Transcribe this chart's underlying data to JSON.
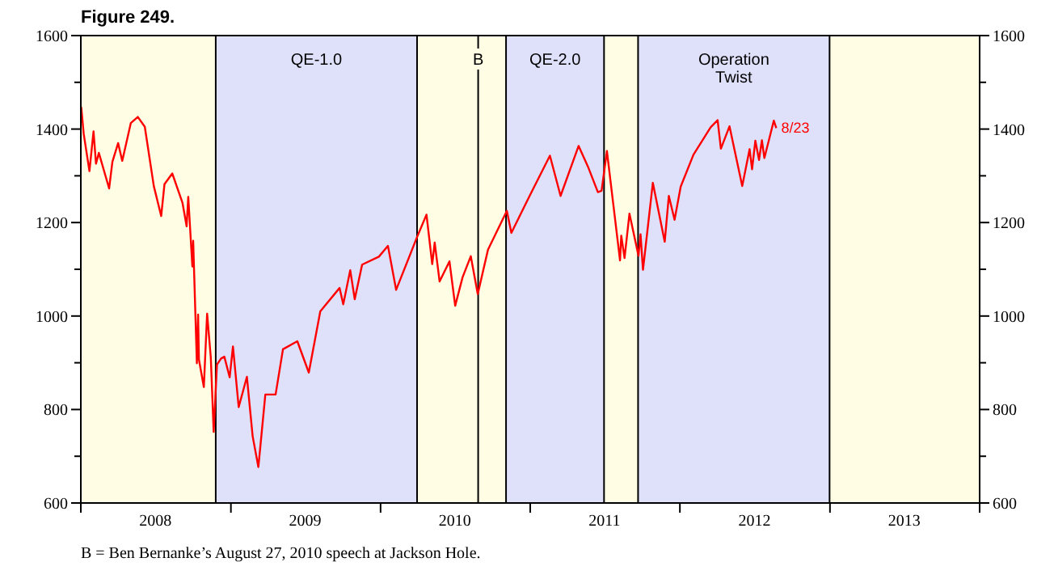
{
  "chart_data": {
    "type": "line",
    "title": "Figure 249.",
    "x": [
      "2008-01-02",
      "2008-01-08",
      "2008-01-22",
      "2008-02-01",
      "2008-02-07",
      "2008-02-14",
      "2008-03-10",
      "2008-03-18",
      "2008-04-01",
      "2008-04-11",
      "2008-05-02",
      "2008-05-19",
      "2008-06-05",
      "2008-06-27",
      "2008-07-15",
      "2008-07-23",
      "2008-08-11",
      "2008-09-05",
      "2008-09-15",
      "2008-09-19",
      "2008-09-29",
      "2008-10-01",
      "2008-10-10",
      "2008-10-13",
      "2008-10-15",
      "2008-10-27",
      "2008-11-04",
      "2008-11-13",
      "2008-11-20",
      "2008-11-28",
      "2008-12-08",
      "2008-12-16",
      "2008-12-29",
      "2009-01-06",
      "2009-01-20",
      "2009-02-09",
      "2009-02-23",
      "2009-03-09",
      "2009-03-26",
      "2009-04-20",
      "2009-05-08",
      "2009-06-12",
      "2009-07-10",
      "2009-08-07",
      "2009-09-23",
      "2009-10-02",
      "2009-10-19",
      "2009-10-30",
      "2009-11-17",
      "2009-12-28",
      "2010-01-19",
      "2010-02-08",
      "2010-03-31",
      "2010-04-23",
      "2010-05-07",
      "2010-05-13",
      "2010-05-25",
      "2010-06-18",
      "2010-07-02",
      "2010-07-20",
      "2010-08-09",
      "2010-08-26",
      "2010-09-20",
      "2010-11-05",
      "2010-11-16",
      "2010-12-31",
      "2011-02-18",
      "2011-03-16",
      "2011-04-29",
      "2011-05-23",
      "2011-06-15",
      "2011-06-24",
      "2011-07-07",
      "2011-08-08",
      "2011-08-11",
      "2011-08-19",
      "2011-08-31",
      "2011-09-22",
      "2011-09-27",
      "2011-10-03",
      "2011-10-27",
      "2011-11-25",
      "2011-12-05",
      "2011-12-19",
      "2012-01-03",
      "2012-02-03",
      "2012-03-16",
      "2012-04-02",
      "2012-04-10",
      "2012-05-01",
      "2012-06-01",
      "2012-06-19",
      "2012-06-25",
      "2012-07-03",
      "2012-07-12",
      "2012-07-19",
      "2012-07-25",
      "2012-08-17",
      "2012-08-23"
    ],
    "series": [
      {
        "color": "#ff0000",
        "values": [
          1447,
          1390,
          1310,
          1395,
          1326,
          1349,
          1273,
          1330,
          1370,
          1332,
          1413,
          1426,
          1405,
          1278,
          1214,
          1282,
          1305,
          1242,
          1192,
          1255,
          1106,
          1161,
          899,
          1003,
          907,
          848,
          1005,
          911,
          752,
          896,
          909,
          913,
          869,
          935,
          805,
          870,
          743,
          677,
          832,
          832,
          929,
          946,
          879,
          1010,
          1060,
          1025,
          1098,
          1036,
          1110,
          1127,
          1150,
          1056,
          1169,
          1217,
          1111,
          1157,
          1074,
          1117,
          1022,
          1083,
          1128,
          1047,
          1142,
          1225,
          1178,
          1258,
          1343,
          1257,
          1364,
          1317,
          1265,
          1268,
          1353,
          1119,
          1172,
          1124,
          1219,
          1129,
          1175,
          1099,
          1285,
          1159,
          1257,
          1206,
          1277,
          1345,
          1404,
          1419,
          1358,
          1406,
          1278,
          1357,
          1314,
          1375,
          1334,
          1376,
          1338,
          1418,
          1402
        ]
      }
    ],
    "xlim": [
      "2008-01-01",
      "2014-01-01"
    ],
    "xticks": [
      {
        "value": "2008-01-01",
        "label": null
      },
      {
        "value": "2008-07-01",
        "label": "2008"
      },
      {
        "value": "2009-01-01",
        "label": null
      },
      {
        "value": "2009-07-01",
        "label": "2009"
      },
      {
        "value": "2010-01-01",
        "label": null
      },
      {
        "value": "2010-07-01",
        "label": "2010"
      },
      {
        "value": "2011-01-01",
        "label": null
      },
      {
        "value": "2011-07-01",
        "label": "2011"
      },
      {
        "value": "2012-01-01",
        "label": null
      },
      {
        "value": "2012-07-01",
        "label": "2012"
      },
      {
        "value": "2013-01-01",
        "label": null
      },
      {
        "value": "2013-07-01",
        "label": "2013"
      },
      {
        "value": "2014-01-01",
        "label": null
      }
    ],
    "ylim": [
      600,
      1600
    ],
    "yticks": [
      600,
      {
        "value": 700,
        "label": null
      },
      800,
      {
        "value": 900,
        "label": null
      },
      1000,
      {
        "value": 1100,
        "label": null
      },
      1200,
      {
        "value": 1300,
        "label": null
      },
      1400,
      {
        "value": 1500,
        "label": null
      },
      1600
    ],
    "y2lim": [
      600,
      1600
    ],
    "y2ticks": [
      600,
      {
        "value": 700,
        "label": null
      },
      800,
      {
        "value": 900,
        "label": null
      },
      1000,
      {
        "value": 1100,
        "label": null
      },
      1200,
      {
        "value": 1300,
        "label": null
      },
      1400,
      {
        "value": 1500,
        "label": null
      },
      1600
    ],
    "bands": [
      {
        "axis": "x",
        "from": "2008-11-25",
        "to": "2010-03-31",
        "label": "QE-1.0",
        "color": "#dfe1fa"
      },
      {
        "axis": "x",
        "from": "2010-11-03",
        "to": "2011-06-30",
        "label": "QE-2.0",
        "color": "#dfe1fa"
      },
      {
        "axis": "x",
        "from": "2011-09-21",
        "to": "2012-12-31",
        "label": "Operation Twist",
        "color": "#dfe1fa"
      }
    ],
    "ref_lines": [
      {
        "axis": "x",
        "value": "2010-08-27",
        "label": "B",
        "color": "#000000"
      }
    ],
    "annotations": [
      {
        "text": "8/23",
        "x": "2012-08-23",
        "y": 1402
      },
      "B = Ben Bernanke’s August 27, 2010 speech at Jackson Hole."
    ],
    "grid": false,
    "marker": "none",
    "line_style": "solid"
  }
}
